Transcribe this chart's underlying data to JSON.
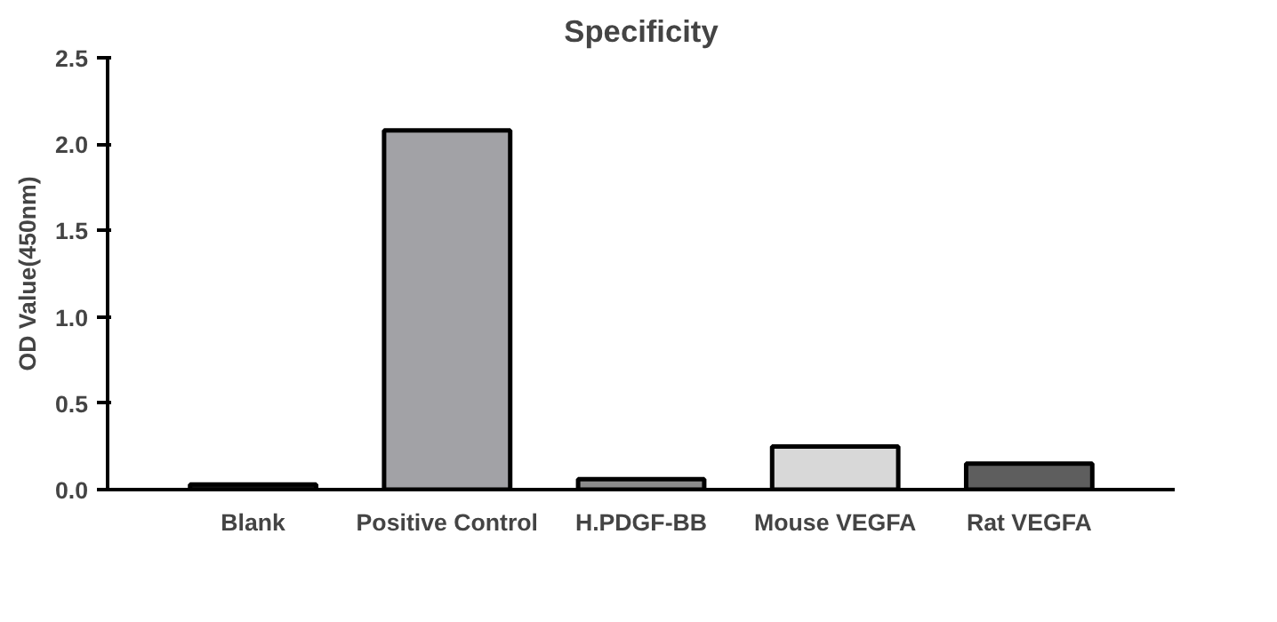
{
  "chart_data": {
    "type": "bar",
    "title": "Specificity",
    "ylabel": "OD Value(450nm)",
    "categories": [
      "Blank",
      "Positive Control",
      "H.PDGF-BB",
      "Mouse VEGFA",
      "Rat VEGFA"
    ],
    "values": [
      0.03,
      2.08,
      0.06,
      0.25,
      0.15
    ],
    "colors": [
      "#202020",
      "#a2a2a6",
      "#8c8c8c",
      "#d8d8d8",
      "#5e5e5e"
    ],
    "ylim": [
      0,
      2.5
    ],
    "yticks": [
      {
        "value": 0,
        "label": "0.0"
      },
      {
        "value": 0.5,
        "label": "0.5"
      },
      {
        "value": 1,
        "label": "1.0"
      },
      {
        "value": 1.5,
        "label": "1.5"
      },
      {
        "value": 2,
        "label": "2.0"
      },
      {
        "value": 2.5,
        "label": "2.5"
      }
    ],
    "grid": false
  }
}
